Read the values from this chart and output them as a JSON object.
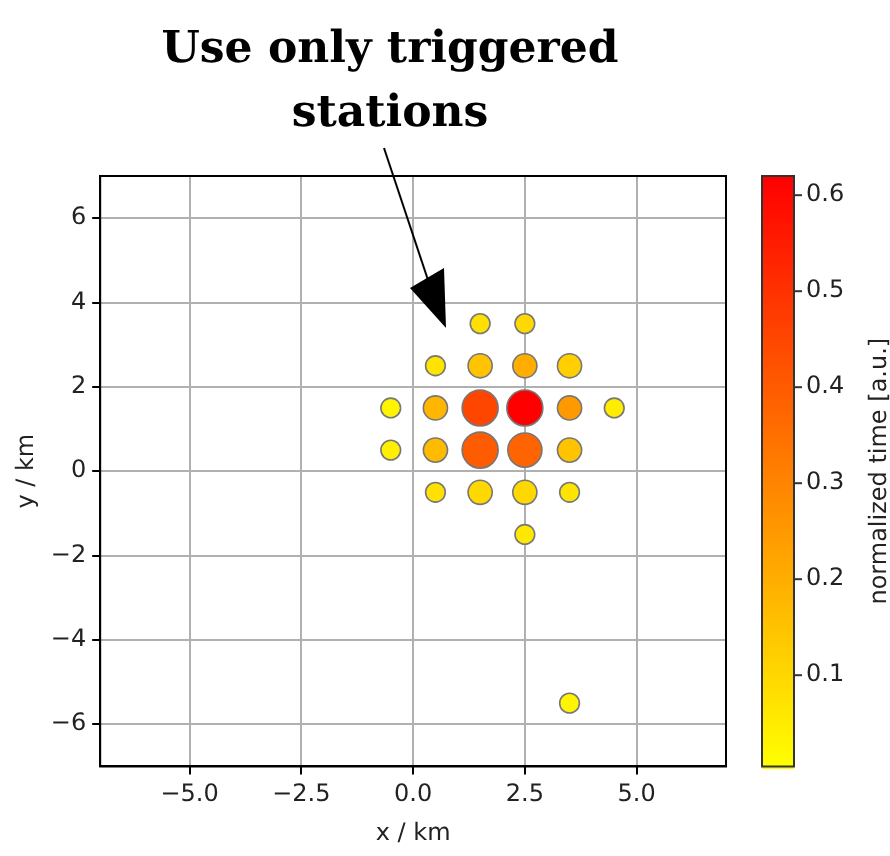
{
  "chart_data": {
    "type": "bubble",
    "annotations": [
      "Use only triggered\nstations"
    ],
    "xlabel": "x / km",
    "ylabel": "y / km",
    "clabel": "normalized time [a.u.]",
    "xlim": [
      -7,
      7
    ],
    "ylim": [
      -7,
      7
    ],
    "xticks": [
      {
        "value": -5,
        "label": "−5.0"
      },
      {
        "value": -2.5,
        "label": "−2.5"
      },
      {
        "value": 0,
        "label": "0.0"
      },
      {
        "value": 2.5,
        "label": "2.5"
      },
      {
        "value": 5,
        "label": "5.0"
      }
    ],
    "yticks": [
      {
        "value": -6,
        "label": "−6"
      },
      {
        "value": -4,
        "label": "−4"
      },
      {
        "value": -2,
        "label": "−2"
      },
      0,
      2,
      4,
      6
    ],
    "clim": [
      0.005,
      0.62
    ],
    "cticks": [
      0.1,
      0.2,
      0.3,
      0.4,
      0.5,
      0.6
    ],
    "grid": true,
    "x": [
      1.5,
      2.5,
      0.5,
      1.5,
      2.5,
      3.5,
      -0.5,
      0.5,
      1.5,
      2.5,
      3.5,
      4.5,
      -0.5,
      0.5,
      1.5,
      2.5,
      3.5,
      0.5,
      1.5,
      2.5,
      3.5,
      2.5,
      3.5
    ],
    "values": [
      3.5,
      3.5,
      2.5,
      2.5,
      2.5,
      2.5,
      1.5,
      1.5,
      1.5,
      1.5,
      1.5,
      1.5,
      0.5,
      0.5,
      0.5,
      0.5,
      0.5,
      -0.5,
      -0.5,
      -0.5,
      -0.5,
      -1.5,
      -5.5
    ],
    "cvalues": [
      0.08,
      0.1,
      0.07,
      0.15,
      0.2,
      0.12,
      0.03,
      0.18,
      0.45,
      0.62,
      0.25,
      0.05,
      0.04,
      0.17,
      0.4,
      0.38,
      0.15,
      0.08,
      0.1,
      0.1,
      0.07,
      0.06,
      0.03
    ],
    "sizes": [
      0.3,
      0.3,
      0.3,
      0.45,
      0.45,
      0.45,
      0.3,
      0.45,
      1,
      1,
      0.45,
      0.3,
      0.3,
      0.45,
      1,
      0.9,
      0.45,
      0.3,
      0.45,
      0.45,
      0.3,
      0.3,
      0.3
    ]
  }
}
